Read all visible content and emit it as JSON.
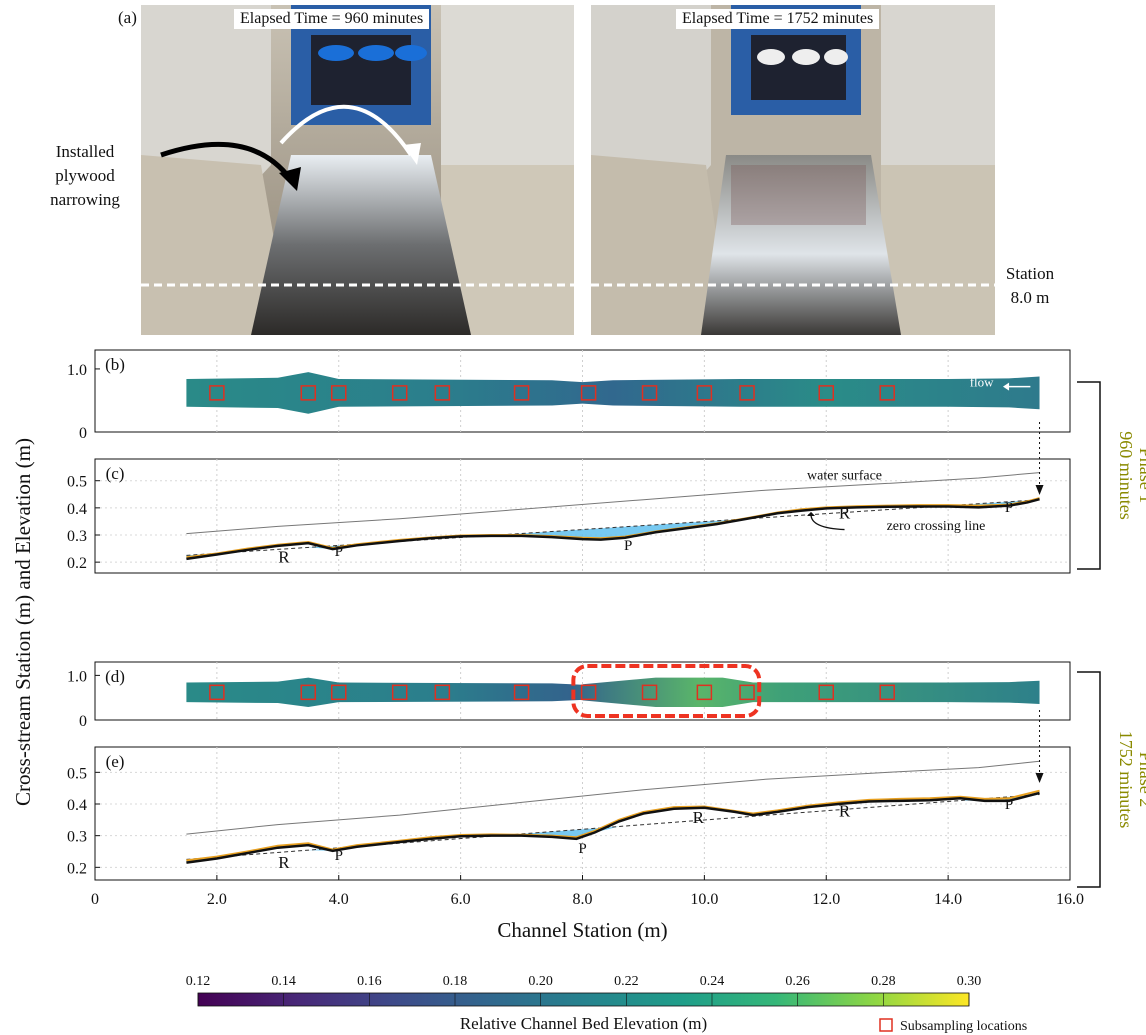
{
  "photos": {
    "letter": "(a)",
    "left_label": "Elapsed Time = 960 minutes",
    "right_label": "Elapsed Time = 1752 minutes",
    "annotation_lines": [
      "Installed",
      "plywood",
      "narrowing"
    ],
    "station_lines": [
      "Station",
      "8.0 m"
    ]
  },
  "phases": [
    {
      "lines": [
        "Phase 1",
        "960 minutes"
      ],
      "color": "#8a8a00"
    },
    {
      "lines": [
        "Phase 2",
        "1752 minutes"
      ],
      "color": "#8a8a00"
    }
  ],
  "chart_data": {
    "type": "line",
    "xlabel": "Channel Station (m)",
    "ylabel": "Cross-stream Station (m) and Elevation (m)",
    "xlim": [
      0,
      16
    ],
    "x_ticks": [
      "0",
      "2.0",
      "4.0",
      "6.0",
      "8.0",
      "10.0",
      "12.0",
      "14.0",
      "16.0"
    ],
    "subsampling_x": [
      2.0,
      3.5,
      4.0,
      5.0,
      5.7,
      7.0,
      8.1,
      9.1,
      10.0,
      10.7,
      12.0,
      13.0
    ],
    "panels": [
      {
        "letter": "(b)",
        "kind": "plan",
        "ylim": [
          0,
          1.3
        ],
        "y_ticks": [
          "0",
          "1.0"
        ],
        "annotation": "flow",
        "highlight": false
      },
      {
        "letter": "(c)",
        "kind": "profile",
        "ylim": [
          0.16,
          0.58
        ],
        "y_ticks": [
          "0.2",
          "0.3",
          "0.4",
          "0.5"
        ],
        "labels": [
          {
            "text": "R",
            "x": 3.1,
            "y": 0.198
          },
          {
            "text": "P",
            "x": 4.0,
            "y": 0.223
          },
          {
            "text": "P",
            "x": 8.75,
            "y": 0.245
          },
          {
            "text": "R",
            "x": 12.3,
            "y": 0.36
          },
          {
            "text": "P",
            "x": 15.0,
            "y": 0.385
          }
        ],
        "water_surface_label": "water surface",
        "zero_crossing_label": "zero crossing line",
        "water_surface": {
          "x": [
            1.5,
            3.0,
            5.0,
            7.0,
            9.0,
            11.0,
            13.0,
            14.5,
            15.5
          ],
          "y": [
            0.305,
            0.332,
            0.36,
            0.395,
            0.43,
            0.465,
            0.49,
            0.51,
            0.53
          ]
        },
        "bed_black": {
          "x": [
            1.5,
            2.0,
            2.5,
            3.0,
            3.5,
            3.9,
            4.3,
            5.0,
            5.5,
            6.0,
            6.5,
            7.0,
            7.5,
            8.0,
            8.3,
            8.7,
            9.2,
            9.7,
            10.2,
            10.7,
            11.2,
            11.6,
            12.0,
            12.5,
            13.0,
            13.5,
            14.0,
            14.5,
            15.0,
            15.3,
            15.5
          ],
          "y": [
            0.212,
            0.228,
            0.245,
            0.26,
            0.27,
            0.248,
            0.262,
            0.278,
            0.288,
            0.295,
            0.297,
            0.297,
            0.292,
            0.285,
            0.283,
            0.29,
            0.31,
            0.325,
            0.34,
            0.36,
            0.38,
            0.39,
            0.398,
            0.402,
            0.404,
            0.405,
            0.405,
            0.402,
            0.408,
            0.42,
            0.432
          ]
        },
        "bed_orange": {
          "x": [
            1.5,
            2.0,
            2.5,
            3.0,
            3.5,
            3.9,
            4.3,
            5.0,
            5.5,
            6.0,
            6.5,
            7.0,
            7.5,
            8.0,
            8.3,
            8.7,
            9.2,
            9.7,
            10.2,
            10.7,
            11.2,
            11.6,
            12.0,
            12.5,
            13.0,
            13.5,
            14.0,
            14.5,
            15.0,
            15.3,
            15.5
          ],
          "y": [
            0.218,
            0.232,
            0.25,
            0.264,
            0.274,
            0.252,
            0.266,
            0.282,
            0.291,
            0.298,
            0.3,
            0.3,
            0.296,
            0.29,
            0.288,
            0.294,
            0.313,
            0.328,
            0.343,
            0.362,
            0.383,
            0.395,
            0.402,
            0.406,
            0.408,
            0.41,
            0.41,
            0.408,
            0.412,
            0.424,
            0.436
          ]
        },
        "zero_crossing": {
          "x": [
            1.5,
            15.5
          ],
          "y": [
            0.225,
            0.43
          ]
        }
      },
      {
        "letter": "(d)",
        "kind": "plan",
        "ylim": [
          0,
          1.3
        ],
        "y_ticks": [
          "0",
          "1.0"
        ],
        "highlight": true
      },
      {
        "letter": "(e)",
        "kind": "profile",
        "ylim": [
          0.16,
          0.58
        ],
        "y_ticks": [
          "0.2",
          "0.3",
          "0.4",
          "0.5"
        ],
        "labels": [
          {
            "text": "R",
            "x": 3.1,
            "y": 0.198
          },
          {
            "text": "P",
            "x": 4.0,
            "y": 0.223
          },
          {
            "text": "P",
            "x": 8.0,
            "y": 0.245
          },
          {
            "text": "R",
            "x": 9.9,
            "y": 0.34
          },
          {
            "text": "R",
            "x": 12.3,
            "y": 0.36
          },
          {
            "text": "P",
            "x": 15.0,
            "y": 0.385
          }
        ],
        "water_surface": {
          "x": [
            1.5,
            3.0,
            5.0,
            7.0,
            9.0,
            11.0,
            13.0,
            14.5,
            15.5
          ],
          "y": [
            0.305,
            0.335,
            0.365,
            0.405,
            0.445,
            0.478,
            0.5,
            0.515,
            0.535
          ]
        },
        "bed_black": {
          "x": [
            1.5,
            2.0,
            2.5,
            3.0,
            3.5,
            3.9,
            4.3,
            5.0,
            5.5,
            6.0,
            6.5,
            7.0,
            7.5,
            7.9,
            8.2,
            8.6,
            9.0,
            9.5,
            10.0,
            10.5,
            10.8,
            11.2,
            11.7,
            12.2,
            12.7,
            13.2,
            13.7,
            14.2,
            14.6,
            15.0,
            15.5
          ],
          "y": [
            0.215,
            0.228,
            0.245,
            0.262,
            0.27,
            0.252,
            0.265,
            0.28,
            0.29,
            0.298,
            0.3,
            0.3,
            0.296,
            0.29,
            0.31,
            0.345,
            0.37,
            0.385,
            0.388,
            0.375,
            0.365,
            0.375,
            0.39,
            0.4,
            0.408,
            0.41,
            0.412,
            0.418,
            0.41,
            0.41,
            0.435
          ]
        },
        "bed_orange": {
          "x": [
            1.5,
            2.0,
            2.5,
            3.0,
            3.5,
            3.9,
            4.3,
            5.0,
            5.5,
            6.0,
            6.5,
            7.0,
            7.5,
            7.9,
            8.2,
            8.6,
            9.0,
            9.5,
            10.0,
            10.5,
            10.8,
            11.2,
            11.7,
            12.2,
            12.7,
            13.2,
            13.7,
            14.2,
            14.6,
            15.0,
            15.5
          ],
          "y": [
            0.222,
            0.234,
            0.25,
            0.268,
            0.276,
            0.256,
            0.27,
            0.284,
            0.295,
            0.302,
            0.304,
            0.303,
            0.3,
            0.295,
            0.315,
            0.35,
            0.375,
            0.39,
            0.392,
            0.378,
            0.37,
            0.38,
            0.395,
            0.405,
            0.413,
            0.416,
            0.418,
            0.423,
            0.416,
            0.418,
            0.442
          ]
        },
        "zero_crossing": {
          "x": [
            1.5,
            15.5
          ],
          "y": [
            0.225,
            0.43
          ]
        }
      }
    ],
    "colorbar": {
      "label": "Relative Channel Bed Elevation (m)",
      "ticks": [
        "0.12",
        "0.14",
        "0.16",
        "0.18",
        "0.20",
        "0.22",
        "0.24",
        "0.26",
        "0.28",
        "0.30"
      ],
      "range": [
        0.12,
        0.3
      ]
    },
    "legend": {
      "label": "Subsampling locations",
      "color": "#e03020"
    },
    "colors": {
      "bed_black": "#111111",
      "bed_orange": "#e8a020",
      "fill": "#5fbfef",
      "water_surface": "#777777",
      "subsampling": "#e03020",
      "highlight": "#ee3322"
    }
  }
}
